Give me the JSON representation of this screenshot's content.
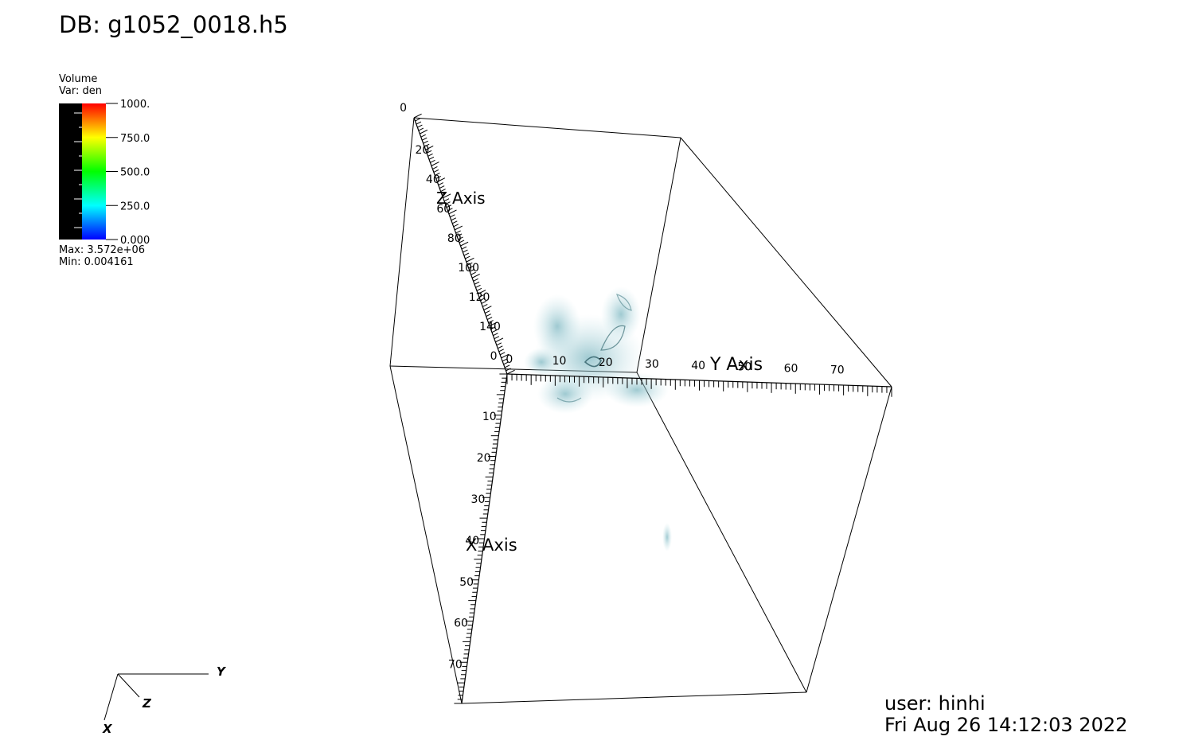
{
  "title": "DB: g1052_0018.h5",
  "legend": {
    "plot_type": "Volume",
    "variable": "Var: den",
    "max": "Max:  3.572e+06",
    "min": "Min:  0.004161",
    "tick_labels": [
      "1000.",
      "750.0",
      "500.0",
      "250.0",
      "0.000"
    ]
  },
  "user": "user: hinhi",
  "timestamp": "Fri Aug 26 14:12:03 2022",
  "triad": {
    "x": "X",
    "y": "Y",
    "z": "Z"
  },
  "chart_data": {
    "type": "volume",
    "variable": "den",
    "colormap": "hot (blue-cyan-green-yellow-red)",
    "range": [
      0.0,
      1000.0
    ],
    "axes": {
      "x": {
        "label": "X Axis",
        "ticks": [
          "10",
          "20",
          "30",
          "40",
          "50",
          "60",
          "70"
        ]
      },
      "y": {
        "label": "Y Axis",
        "ticks": [
          "0",
          "10",
          "20",
          "30",
          "40",
          "50",
          "60",
          "70"
        ]
      },
      "z": {
        "label": "Z Axis",
        "ticks": [
          "0",
          "20",
          "40",
          "60",
          "80",
          "100",
          "120",
          "140",
          "0"
        ]
      }
    }
  }
}
